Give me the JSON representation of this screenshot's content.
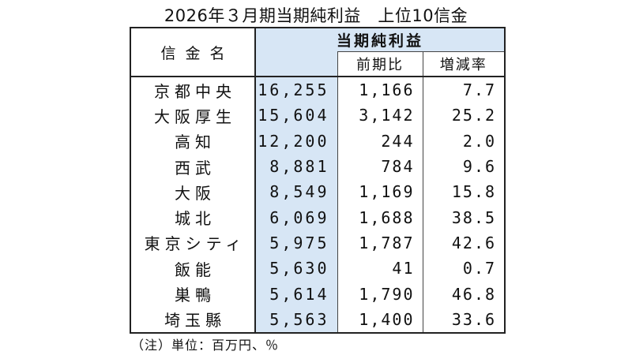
{
  "title": "2026年３月期当期純利益　上位10信金",
  "table": {
    "name_header": "信金名",
    "profit_header": "当期純利益",
    "prev_header": "前期比",
    "rate_header": "増減率",
    "rows": [
      {
        "name": "京都中央",
        "profit": "16,255",
        "prev": "1,166",
        "rate": "7.7"
      },
      {
        "name": "大阪厚生",
        "profit": "15,604",
        "prev": "3,142",
        "rate": "25.2"
      },
      {
        "name": "高知",
        "profit": "12,200",
        "prev": "244",
        "rate": "2.0"
      },
      {
        "name": "西武",
        "profit": "8,881",
        "prev": "784",
        "rate": "9.6"
      },
      {
        "name": "大阪",
        "profit": "8,549",
        "prev": "1,169",
        "rate": "15.8"
      },
      {
        "name": "城北",
        "profit": "6,069",
        "prev": "1,688",
        "rate": "38.5"
      },
      {
        "name": "東京シティ",
        "profit": "5,975",
        "prev": "1,787",
        "rate": "42.6"
      },
      {
        "name": "飯能",
        "profit": "5,630",
        "prev": "41",
        "rate": "0.7"
      },
      {
        "name": "巣鴨",
        "profit": "5,614",
        "prev": "1,790",
        "rate": "46.8"
      },
      {
        "name": "埼玉縣",
        "profit": "5,563",
        "prev": "1,400",
        "rate": "33.6"
      }
    ]
  },
  "note": "（注）単位：百万円、％",
  "colors": {
    "highlight": "#d7e6f5",
    "border": "#222222"
  }
}
